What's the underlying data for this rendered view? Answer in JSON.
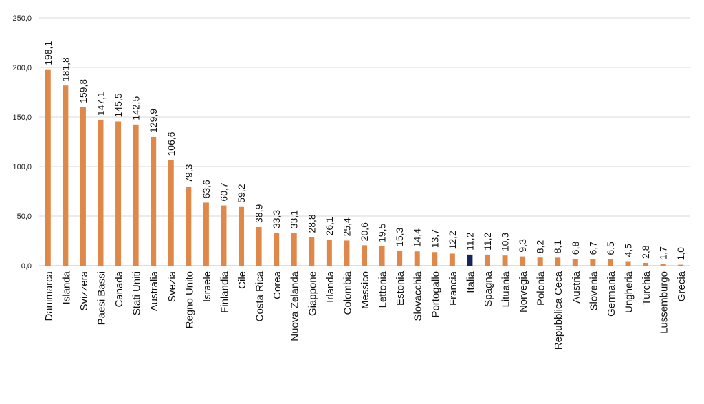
{
  "chart_data": {
    "type": "bar",
    "title": "",
    "xlabel": "",
    "ylabel": "",
    "ylim": [
      0,
      250
    ],
    "yticks": [
      "0,0",
      "50,0",
      "100,0",
      "150,0",
      "200,0",
      "250,0"
    ],
    "grid": true,
    "legend": "none",
    "bar_color": "#E0884A",
    "highlight_color": "#1A2456",
    "highlight_category": "Italia",
    "categories": [
      "Danimarca",
      "Islanda",
      "Svizzera",
      "Paesi Bassi",
      "Canada",
      "Stati Uniti",
      "Australia",
      "Svezia",
      "Regno Unito",
      "Israele",
      "Finlandia",
      "Cile",
      "Costa Rica",
      "Corea",
      "Nuova Zelanda",
      "Giappone",
      "Irlanda",
      "Colombia",
      "Messico",
      "Lettonia",
      "Estonia",
      "Slovacchia",
      "Portogallo",
      "Francia",
      "Italia",
      "Spagna",
      "Lituania",
      "Norvegia",
      "Polonia",
      "Repubblica Ceca",
      "Austria",
      "Slovenia",
      "Germania",
      "Ungheria",
      "Turchia",
      "Lussemburgo",
      "Grecia"
    ],
    "values": [
      198.1,
      181.8,
      159.8,
      147.1,
      145.5,
      142.5,
      129.9,
      106.6,
      79.3,
      63.6,
      60.7,
      59.2,
      38.9,
      33.3,
      33.1,
      28.8,
      26.1,
      25.4,
      20.6,
      19.5,
      15.3,
      14.4,
      13.7,
      12.2,
      11.2,
      11.2,
      10.3,
      9.3,
      8.2,
      8.1,
      6.8,
      6.7,
      6.5,
      4.5,
      2.8,
      1.7,
      1.0
    ],
    "value_labels": [
      "198,1",
      "181,8",
      "159,8",
      "147,1",
      "145,5",
      "142,5",
      "129,9",
      "106,6",
      "79,3",
      "63,6",
      "60,7",
      "59,2",
      "38,9",
      "33,3",
      "33,1",
      "28,8",
      "26,1",
      "25,4",
      "20,6",
      "19,5",
      "15,3",
      "14,4",
      "13,7",
      "12,2",
      "11,2",
      "11,2",
      "10,3",
      "9,3",
      "8,2",
      "8,1",
      "6,8",
      "6,7",
      "6,5",
      "4,5",
      "2,8",
      "1,7",
      "1,0"
    ]
  }
}
